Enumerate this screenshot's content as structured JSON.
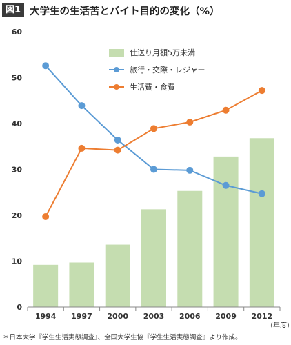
{
  "header": {
    "badge": "図1",
    "title": "大学生の生活苦とバイト目的の変化（%）"
  },
  "footer": {
    "source": "＊日本大学『学生生活実態調査』、全国大学生協『学生生活実態調査』より作成。",
    "year_unit": "（年度）"
  },
  "colors": {
    "bar": "#c5ddb0",
    "travel": "#5b9bd5",
    "living": "#ed7d31",
    "axis": "#888888"
  },
  "chart_data": {
    "type": "bar",
    "categories": [
      "1994",
      "1997",
      "2000",
      "2003",
      "2006",
      "2009",
      "2012"
    ],
    "ylim": [
      0,
      60
    ],
    "yticks": [
      0,
      10,
      20,
      30,
      40,
      50,
      60
    ],
    "grid": false,
    "legend_position": "top-right",
    "series": [
      {
        "name": "仕送り月額5万未満",
        "kind": "bar",
        "values": [
          9.2,
          9.7,
          13.6,
          21.3,
          25.3,
          32.8,
          36.8
        ]
      },
      {
        "name": "旅行・交際・レジャー",
        "kind": "line",
        "values": [
          52.6,
          43.9,
          36.4,
          30.0,
          29.8,
          26.5,
          24.7
        ]
      },
      {
        "name": "生活費・食費",
        "kind": "line",
        "values": [
          19.7,
          34.6,
          34.2,
          38.9,
          40.3,
          42.9,
          47.2
        ]
      }
    ]
  }
}
